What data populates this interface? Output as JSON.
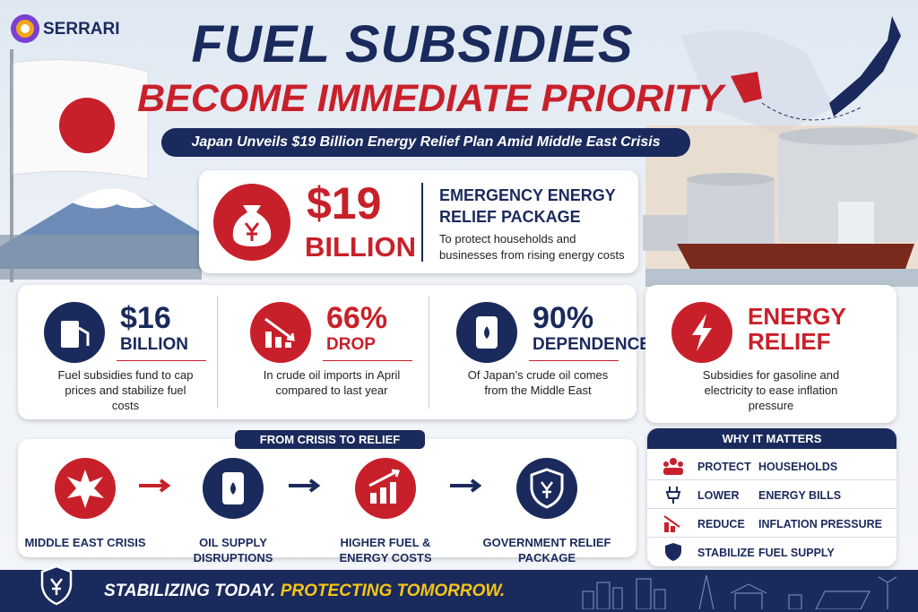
{
  "brand": "SERRARI",
  "header": {
    "title_line1": "FUEL SUBSIDIES",
    "title_line2": "BECOME IMMEDIATE PRIORITY",
    "subtitle": "Japan Unveils $19 Billion Energy Relief Plan Amid Middle East Crisis"
  },
  "hero": {
    "amount": "$19",
    "unit": "BILLION",
    "heading": "EMERGENCY ENERGY RELIEF PACKAGE",
    "text": "To protect households and businesses from rising energy costs"
  },
  "stats": [
    {
      "value": "$16",
      "unit": "BILLION",
      "text": "Fuel subsidies fund to cap prices and stabilize fuel costs"
    },
    {
      "value": "66%",
      "unit": "DROP",
      "text": "In crude oil imports in April compared to last year"
    },
    {
      "value": "90%",
      "unit": "DEPENDENCE",
      "text": "Of Japan’s crude oil comes from the Middle East"
    },
    {
      "value": "ENERGY",
      "unit": "RELIEF",
      "text": "Subsidies for gasoline and electricity to ease inflation pressure"
    }
  ],
  "flow": {
    "title": "FROM CRISIS TO RELIEF",
    "steps": [
      "MIDDLE EAST CRISIS",
      "OIL SUPPLY DISRUPTIONS",
      "HIGHER FUEL & ENERGY COSTS",
      "GOVERNMENT RELIEF PACKAGE"
    ]
  },
  "why": {
    "title": "WHY IT MATTERS",
    "rows": [
      {
        "verb": "PROTECT",
        "object": "HOUSEHOLDS"
      },
      {
        "verb": "LOWER",
        "object": "ENERGY BILLS"
      },
      {
        "verb": "REDUCE",
        "object": "INFLATION PRESSURE"
      },
      {
        "verb": "STABILIZE",
        "object": "FUEL SUPPLY"
      }
    ]
  },
  "footer": {
    "part1": "STABILIZING TODAY.",
    "part2": "PROTECTING TOMORROW."
  }
}
